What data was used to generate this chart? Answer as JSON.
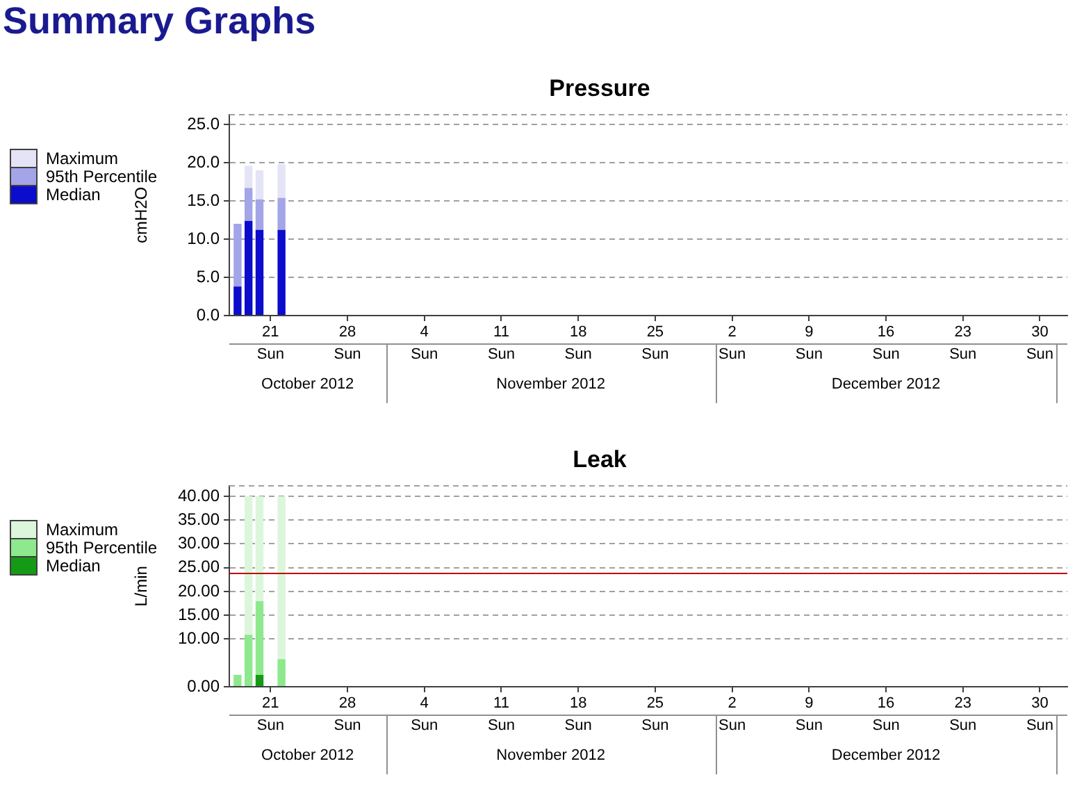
{
  "chart_data": [
    {
      "type": "bar",
      "stacked": true,
      "title": "Pressure",
      "ylabel": "cmH2O",
      "annotations": [
        "Summary Graphs"
      ],
      "x": [
        "2012-10-18T12:00",
        "2012-10-19T12:00",
        "2012-10-20T12:00",
        "2012-10-22T12:00"
      ],
      "series": [
        {
          "name": "Median",
          "color": "#0c0ccc",
          "values": [
            3.8,
            12.4,
            11.2,
            11.2
          ]
        },
        {
          "name": "95th Percentile",
          "color": "#a4a4e8",
          "values": [
            8.2,
            4.3,
            4.0,
            4.2
          ]
        },
        {
          "name": "Maximum",
          "color": "#e4e4f6",
          "values": [
            0,
            2.9,
            3.8,
            4.4
          ]
        }
      ],
      "xlim": [
        "2012-10-17T18:00",
        "2013-01-02"
      ],
      "xticks": [
        {
          "value": "2012-10-21T12:00",
          "label": "21\nSun"
        },
        {
          "value": "2012-10-28T12:00",
          "label": "28\nSun"
        },
        {
          "value": "2012-11-04T12:00",
          "label": "4\nSun"
        },
        {
          "value": "2012-11-11T12:00",
          "label": "11\nSun"
        },
        {
          "value": "2012-11-18T12:00",
          "label": "18\nSun"
        },
        {
          "value": "2012-11-25T12:00",
          "label": "25\nSun"
        },
        {
          "value": "2012-12-02T12:00",
          "label": "2\nSun"
        },
        {
          "value": "2012-12-09T12:00",
          "label": "9\nSun"
        },
        {
          "value": "2012-12-16T12:00",
          "label": "16\nSun"
        },
        {
          "value": "2012-12-23T12:00",
          "label": "23\nSun"
        },
        {
          "value": "2012-12-30T12:00",
          "label": "30\nSun"
        }
      ],
      "x2lim": [
        "2012-10-17T18:00",
        "2013-01-02"
      ],
      "x2ticks": [
        {
          "value": "2012-10-24T21:00",
          "label": "October 2012"
        },
        {
          "value": "2012-11-16",
          "label": "November 2012"
        },
        {
          "value": "2012-12-16T12:00",
          "label": "December 2012"
        }
      ],
      "ylim": [
        0,
        26.3
      ],
      "yticks": [
        {
          "value": 0,
          "label": "0.0"
        },
        {
          "value": 5,
          "label": "5.0"
        },
        {
          "value": 10,
          "label": "10.0"
        },
        {
          "value": 15,
          "label": "15.0"
        },
        {
          "value": 20,
          "label": "20.0"
        },
        {
          "value": 25,
          "label": "25.0"
        }
      ],
      "grid": "y",
      "legend": "left"
    },
    {
      "type": "bar",
      "stacked": true,
      "title": "Leak",
      "ylabel": "L/min",
      "x": [
        "2012-10-18T12:00",
        "2012-10-19T12:00",
        "2012-10-20T12:00",
        "2012-10-22T12:00"
      ],
      "series": [
        {
          "name": "Median",
          "color": "#149a14",
          "values": [
            0,
            0,
            2.5,
            0
          ]
        },
        {
          "name": "95th Percentile",
          "color": "#8ee88e",
          "values": [
            2.5,
            10.9,
            15.5,
            5.8
          ]
        },
        {
          "name": "Maximum",
          "color": "#dcf6dc",
          "values": [
            0,
            29.1,
            22.0,
            34.2
          ]
        }
      ],
      "xlim": [
        "2012-10-17T18:00",
        "2013-01-02"
      ],
      "xticks": [
        {
          "value": "2012-10-21T12:00",
          "label": "21\nSun"
        },
        {
          "value": "2012-10-28T12:00",
          "label": "28\nSun"
        },
        {
          "value": "2012-11-04T12:00",
          "label": "4\nSun"
        },
        {
          "value": "2012-11-11T12:00",
          "label": "11\nSun"
        },
        {
          "value": "2012-11-18T12:00",
          "label": "18\nSun"
        },
        {
          "value": "2012-11-25T12:00",
          "label": "25\nSun"
        },
        {
          "value": "2012-12-02T12:00",
          "label": "2\nSun"
        },
        {
          "value": "2012-12-09T12:00",
          "label": "9\nSun"
        },
        {
          "value": "2012-12-16T12:00",
          "label": "16\nSun"
        },
        {
          "value": "2012-12-23T12:00",
          "label": "23\nSun"
        },
        {
          "value": "2012-12-30T12:00",
          "label": "30\nSun"
        }
      ],
      "x2lim": [
        "2012-10-17T18:00",
        "2013-01-02"
      ],
      "x2ticks": [
        {
          "value": "2012-10-24T21:00",
          "label": "October 2012"
        },
        {
          "value": "2012-11-16",
          "label": "November 2012"
        },
        {
          "value": "2012-12-16T12:00",
          "label": "December 2012"
        }
      ],
      "ylim": [
        0,
        42.2
      ],
      "yticks": [
        {
          "value": 0,
          "label": "0.00"
        },
        {
          "value": 10,
          "label": "10.00"
        },
        {
          "value": 15,
          "label": "15.00"
        },
        {
          "value": 20,
          "label": "20.00"
        },
        {
          "value": 25,
          "label": "25.00"
        },
        {
          "value": 30,
          "label": "30.00"
        },
        {
          "value": 35,
          "label": "35.00"
        },
        {
          "value": 40,
          "label": "40.00"
        }
      ],
      "ref_lines": [
        {
          "axis": "y",
          "value": 24,
          "color": "#c00000"
        }
      ],
      "grid": "y",
      "legend": "left"
    }
  ]
}
